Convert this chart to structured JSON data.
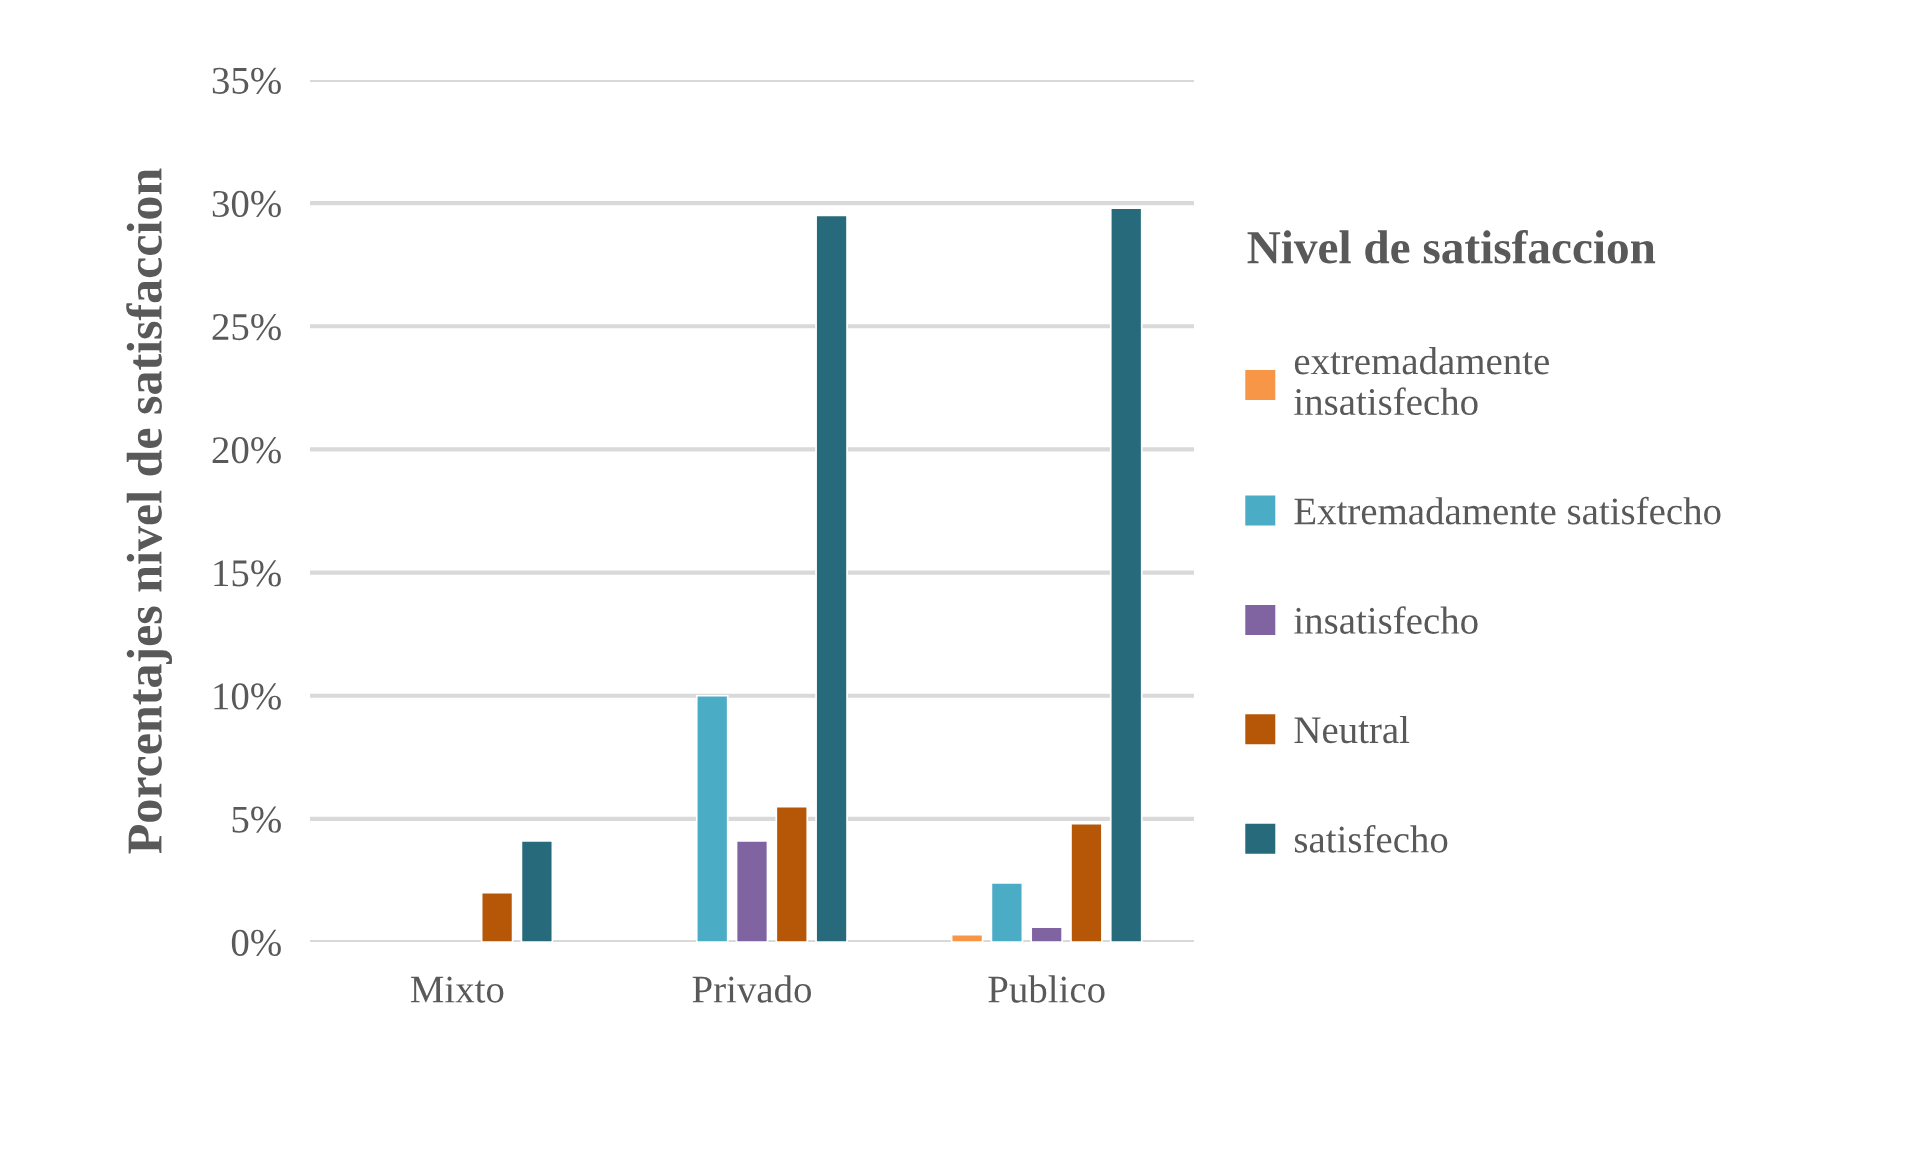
{
  "chart_data": {
    "type": "bar",
    "ylabel": "Porcentajes nivel de satisfaccion",
    "legend_title": "Nivel de satisfaccion",
    "categories": [
      "Mixto",
      "Privado",
      "Publico"
    ],
    "series": [
      {
        "name": "extremadamente\ninsatisfecho",
        "color": "#f79646",
        "values": [
          null,
          null,
          0.3
        ]
      },
      {
        "name": "Extremadamente satisfecho",
        "color": "#4bacc6",
        "values": [
          null,
          10.0,
          2.4
        ]
      },
      {
        "name": "insatisfecho",
        "color": "#8064a2",
        "values": [
          null,
          4.1,
          0.6
        ]
      },
      {
        "name": "Neutral",
        "color": "#b65708",
        "values": [
          2.0,
          5.5,
          4.8
        ]
      },
      {
        "name": "satisfecho",
        "color": "#276a7c",
        "values": [
          4.1,
          29.5,
          29.8
        ]
      }
    ],
    "ylim": [
      0,
      35
    ],
    "yticks": [
      {
        "value": 0,
        "label": "0%"
      },
      {
        "value": 5,
        "label": "5%"
      },
      {
        "value": 10,
        "label": "10%"
      },
      {
        "value": 15,
        "label": "15%"
      },
      {
        "value": 20,
        "label": "20%"
      },
      {
        "value": 25,
        "label": "25%"
      },
      {
        "value": 30,
        "label": "30%"
      },
      {
        "value": 35,
        "label": "35%"
      }
    ],
    "grid": "y",
    "legend": "right"
  }
}
